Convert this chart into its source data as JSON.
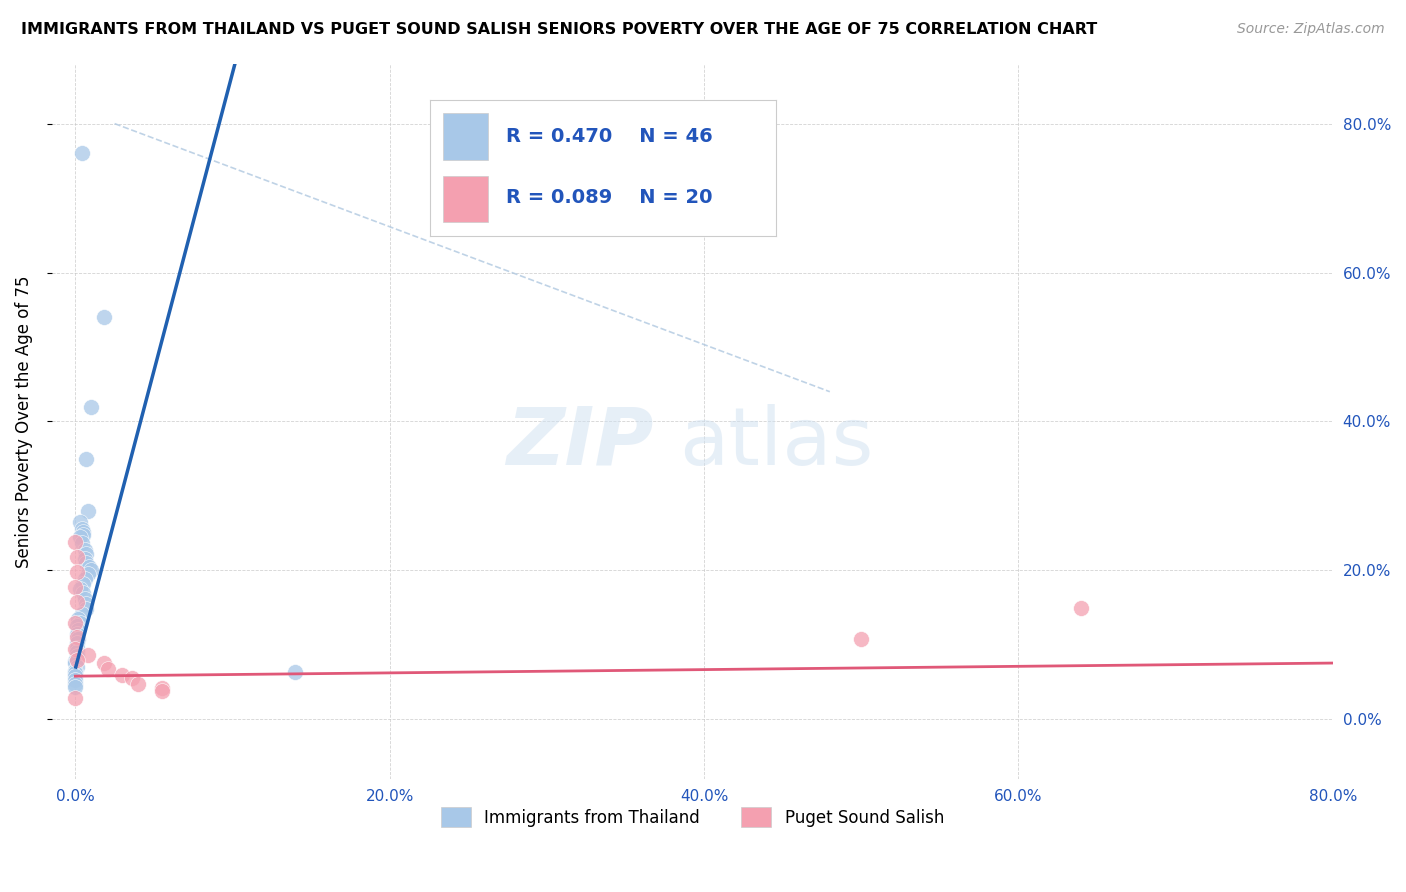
{
  "title": "IMMIGRANTS FROM THAILAND VS PUGET SOUND SALISH SENIORS POVERTY OVER THE AGE OF 75 CORRELATION CHART",
  "source": "Source: ZipAtlas.com",
  "ylabel": "Seniors Poverty Over the Age of 75",
  "xlim": [
    0.0,
    0.8
  ],
  "ylim": [
    -0.08,
    0.88
  ],
  "watermark_zip": "ZIP",
  "watermark_atlas": "atlas",
  "legend_blue_label": "Immigrants from Thailand",
  "legend_pink_label": "Puget Sound Salish",
  "R_blue": "0.470",
  "N_blue": "46",
  "R_pink": "0.089",
  "N_pink": "20",
  "blue_color": "#a8c8e8",
  "pink_color": "#f4a0b0",
  "blue_line_color": "#2060b0",
  "pink_line_color": "#e05878",
  "blue_scatter": [
    [
      0.004,
      0.76
    ],
    [
      0.018,
      0.54
    ],
    [
      0.01,
      0.42
    ],
    [
      0.007,
      0.35
    ],
    [
      0.008,
      0.28
    ],
    [
      0.003,
      0.265
    ],
    [
      0.004,
      0.255
    ],
    [
      0.005,
      0.252
    ],
    [
      0.005,
      0.248
    ],
    [
      0.003,
      0.245
    ],
    [
      0.004,
      0.237
    ],
    [
      0.006,
      0.228
    ],
    [
      0.007,
      0.222
    ],
    [
      0.006,
      0.215
    ],
    [
      0.007,
      0.21
    ],
    [
      0.009,
      0.205
    ],
    [
      0.01,
      0.2
    ],
    [
      0.008,
      0.195
    ],
    [
      0.006,
      0.188
    ],
    [
      0.005,
      0.182
    ],
    [
      0.003,
      0.175
    ],
    [
      0.005,
      0.17
    ],
    [
      0.006,
      0.162
    ],
    [
      0.007,
      0.155
    ],
    [
      0.007,
      0.148
    ],
    [
      0.004,
      0.142
    ],
    [
      0.002,
      0.135
    ],
    [
      0.003,
      0.13
    ],
    [
      0.001,
      0.125
    ],
    [
      0.002,
      0.12
    ],
    [
      0.001,
      0.115
    ],
    [
      0.002,
      0.108
    ],
    [
      0.001,
      0.102
    ],
    [
      0.001,
      0.096
    ],
    [
      0.001,
      0.09
    ],
    [
      0.001,
      0.085
    ],
    [
      0.0,
      0.079
    ],
    [
      0.0,
      0.075
    ],
    [
      0.001,
      0.07
    ],
    [
      0.0,
      0.065
    ],
    [
      0.0,
      0.062
    ],
    [
      0.0,
      0.058
    ],
    [
      0.0,
      0.053
    ],
    [
      0.14,
      0.063
    ],
    [
      0.0,
      0.048
    ],
    [
      0.0,
      0.043
    ]
  ],
  "pink_scatter": [
    [
      0.0,
      0.238
    ],
    [
      0.001,
      0.218
    ],
    [
      0.001,
      0.198
    ],
    [
      0.0,
      0.178
    ],
    [
      0.001,
      0.158
    ],
    [
      0.0,
      0.13
    ],
    [
      0.001,
      0.11
    ],
    [
      0.0,
      0.095
    ],
    [
      0.008,
      0.086
    ],
    [
      0.001,
      0.08
    ],
    [
      0.018,
      0.075
    ],
    [
      0.021,
      0.068
    ],
    [
      0.03,
      0.06
    ],
    [
      0.036,
      0.055
    ],
    [
      0.04,
      0.048
    ],
    [
      0.055,
      0.042
    ],
    [
      0.055,
      0.038
    ],
    [
      0.5,
      0.108
    ],
    [
      0.64,
      0.15
    ],
    [
      0.0,
      0.028
    ]
  ],
  "background_color": "#ffffff",
  "grid_color": "#c8c8c8"
}
